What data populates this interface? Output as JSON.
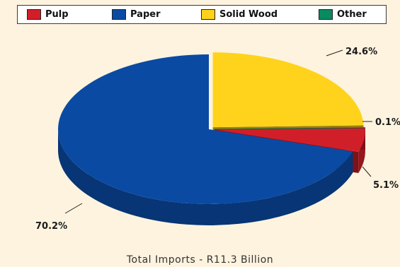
{
  "colors": {
    "Pulp": "#d11f2a",
    "Paper": "#0a4aa3",
    "Solid Wood": "#ffd31c",
    "Other": "#0a8a5f"
  },
  "chart_data": {
    "type": "pie",
    "title": "",
    "caption": "Total Imports - R11.3 Billion",
    "legend_position": "top",
    "slices": [
      {
        "label": "Solid Wood",
        "value": 24.6,
        "display": "24.6%"
      },
      {
        "label": "Other",
        "value": 0.1,
        "display": "0.1%"
      },
      {
        "label": "Pulp",
        "value": 5.1,
        "display": "5.1%"
      },
      {
        "label": "Paper",
        "value": 70.2,
        "display": "70.2%"
      }
    ],
    "legend": [
      "Pulp",
      "Paper",
      "Solid Wood",
      "Other"
    ]
  }
}
